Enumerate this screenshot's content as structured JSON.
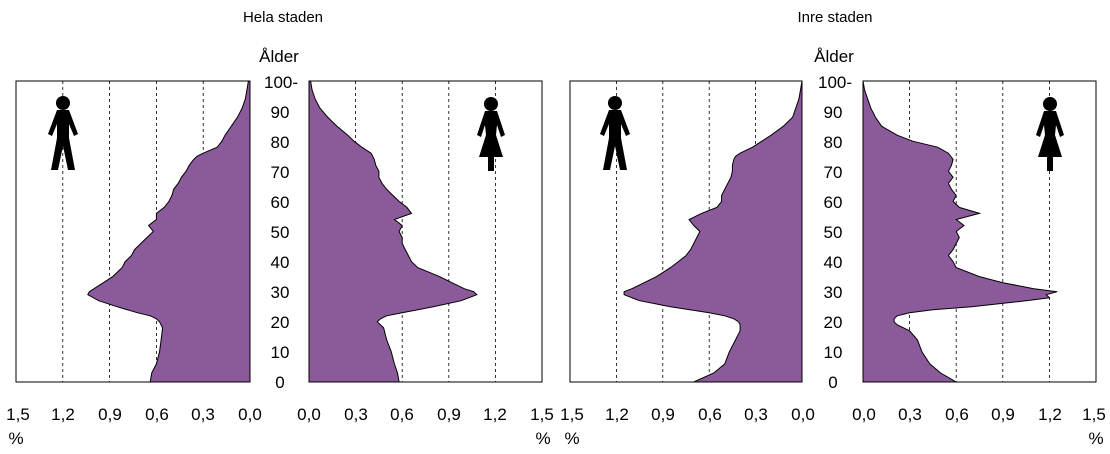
{
  "chart_data": [
    {
      "type": "area",
      "title": "Hela staden",
      "ylabel": "Ålder",
      "xlabel": "%",
      "xlim": [
        0,
        1.5
      ],
      "ylim": [
        0,
        100
      ],
      "x_ticks": [
        "0,0",
        "0,3",
        "0,6",
        "0,9",
        "1,2",
        "1,5"
      ],
      "y_ticks": [
        "0",
        "10",
        "20",
        "30",
        "40",
        "50",
        "60",
        "70",
        "80",
        "90",
        "100-"
      ],
      "grid": "vertical dashed",
      "series": [
        {
          "side": "left",
          "icon": "male-figure-icon",
          "ages": [
            0,
            3,
            6,
            10,
            14,
            18,
            20,
            21,
            22,
            23,
            25,
            27,
            29,
            30,
            31,
            33,
            35,
            38,
            40,
            42,
            44,
            46,
            48,
            50,
            52,
            54,
            56,
            58,
            60,
            62,
            64,
            66,
            68,
            70,
            72,
            74,
            75,
            76,
            78,
            80,
            82,
            85,
            88,
            91,
            94,
            97,
            100
          ],
          "values": [
            0.64,
            0.63,
            0.6,
            0.58,
            0.57,
            0.56,
            0.58,
            0.6,
            0.64,
            0.72,
            0.85,
            0.97,
            1.04,
            1.03,
            1.0,
            0.94,
            0.88,
            0.82,
            0.8,
            0.76,
            0.74,
            0.7,
            0.66,
            0.62,
            0.65,
            0.6,
            0.6,
            0.55,
            0.52,
            0.5,
            0.49,
            0.46,
            0.44,
            0.41,
            0.39,
            0.36,
            0.34,
            0.3,
            0.21,
            0.18,
            0.16,
            0.12,
            0.08,
            0.05,
            0.03,
            0.02,
            0.01
          ]
        },
        {
          "side": "right",
          "icon": "female-figure-icon",
          "ages": [
            0,
            3,
            6,
            10,
            14,
            18,
            20,
            21,
            22,
            23,
            25,
            27,
            29,
            30,
            31,
            33,
            35,
            38,
            40,
            42,
            44,
            46,
            48,
            50,
            52,
            54,
            56,
            58,
            60,
            62,
            64,
            66,
            68,
            70,
            72,
            74,
            76,
            78,
            80,
            82,
            85,
            88,
            91,
            94,
            97,
            100
          ],
          "values": [
            0.58,
            0.57,
            0.55,
            0.53,
            0.5,
            0.48,
            0.44,
            0.46,
            0.5,
            0.6,
            0.8,
            0.98,
            1.08,
            1.06,
            1.0,
            0.92,
            0.84,
            0.7,
            0.66,
            0.64,
            0.62,
            0.6,
            0.6,
            0.58,
            0.6,
            0.55,
            0.66,
            0.63,
            0.58,
            0.54,
            0.5,
            0.47,
            0.45,
            0.45,
            0.43,
            0.42,
            0.4,
            0.34,
            0.29,
            0.25,
            0.18,
            0.12,
            0.07,
            0.04,
            0.02,
            0.01
          ]
        }
      ]
    },
    {
      "type": "area",
      "title": "Inre staden",
      "ylabel": "Ålder",
      "xlabel": "%",
      "xlim": [
        0,
        1.5
      ],
      "ylim": [
        0,
        100
      ],
      "x_ticks": [
        "0,0",
        "0,3",
        "0,6",
        "0,9",
        "1,2",
        "1,5"
      ],
      "y_ticks": [
        "0",
        "10",
        "20",
        "30",
        "40",
        "50",
        "60",
        "70",
        "80",
        "90",
        "100-"
      ],
      "grid": "vertical dashed",
      "series": [
        {
          "side": "left",
          "icon": "male-figure-icon",
          "ages": [
            0,
            3,
            6,
            10,
            14,
            17,
            19,
            20,
            21,
            22,
            23,
            25,
            27,
            29,
            30,
            31,
            33,
            35,
            38,
            40,
            42,
            44,
            46,
            48,
            50,
            52,
            54,
            56,
            58,
            60,
            62,
            64,
            66,
            68,
            70,
            72,
            74,
            75,
            76,
            78,
            80,
            82,
            85,
            88,
            91,
            94,
            97,
            100
          ],
          "values": [
            0.7,
            0.57,
            0.5,
            0.47,
            0.43,
            0.4,
            0.4,
            0.41,
            0.44,
            0.5,
            0.6,
            0.85,
            1.05,
            1.15,
            1.15,
            1.1,
            1.02,
            0.94,
            0.85,
            0.8,
            0.75,
            0.72,
            0.7,
            0.68,
            0.66,
            0.7,
            0.73,
            0.65,
            0.55,
            0.52,
            0.52,
            0.5,
            0.48,
            0.46,
            0.45,
            0.45,
            0.44,
            0.43,
            0.4,
            0.32,
            0.26,
            0.2,
            0.12,
            0.06,
            0.04,
            0.02,
            0.01,
            0.0
          ]
        },
        {
          "side": "right",
          "icon": "female-figure-icon",
          "ages": [
            0,
            3,
            6,
            10,
            14,
            17,
            19,
            20,
            21,
            22,
            23,
            24,
            25,
            27,
            28,
            29,
            30,
            31,
            33,
            35,
            38,
            40,
            42,
            44,
            46,
            48,
            50,
            52,
            54,
            56,
            58,
            60,
            62,
            64,
            66,
            68,
            70,
            72,
            74,
            76,
            78,
            80,
            82,
            85,
            88,
            91,
            94,
            97,
            100
          ],
          "values": [
            0.6,
            0.5,
            0.43,
            0.38,
            0.35,
            0.3,
            0.22,
            0.2,
            0.2,
            0.22,
            0.3,
            0.45,
            0.7,
            1.05,
            1.2,
            1.18,
            1.25,
            1.1,
            0.9,
            0.75,
            0.6,
            0.58,
            0.55,
            0.58,
            0.6,
            0.62,
            0.6,
            0.65,
            0.6,
            0.75,
            0.62,
            0.58,
            0.6,
            0.57,
            0.55,
            0.58,
            0.55,
            0.57,
            0.58,
            0.55,
            0.48,
            0.32,
            0.22,
            0.12,
            0.08,
            0.05,
            0.03,
            0.01,
            0.0
          ]
        }
      ]
    }
  ]
}
